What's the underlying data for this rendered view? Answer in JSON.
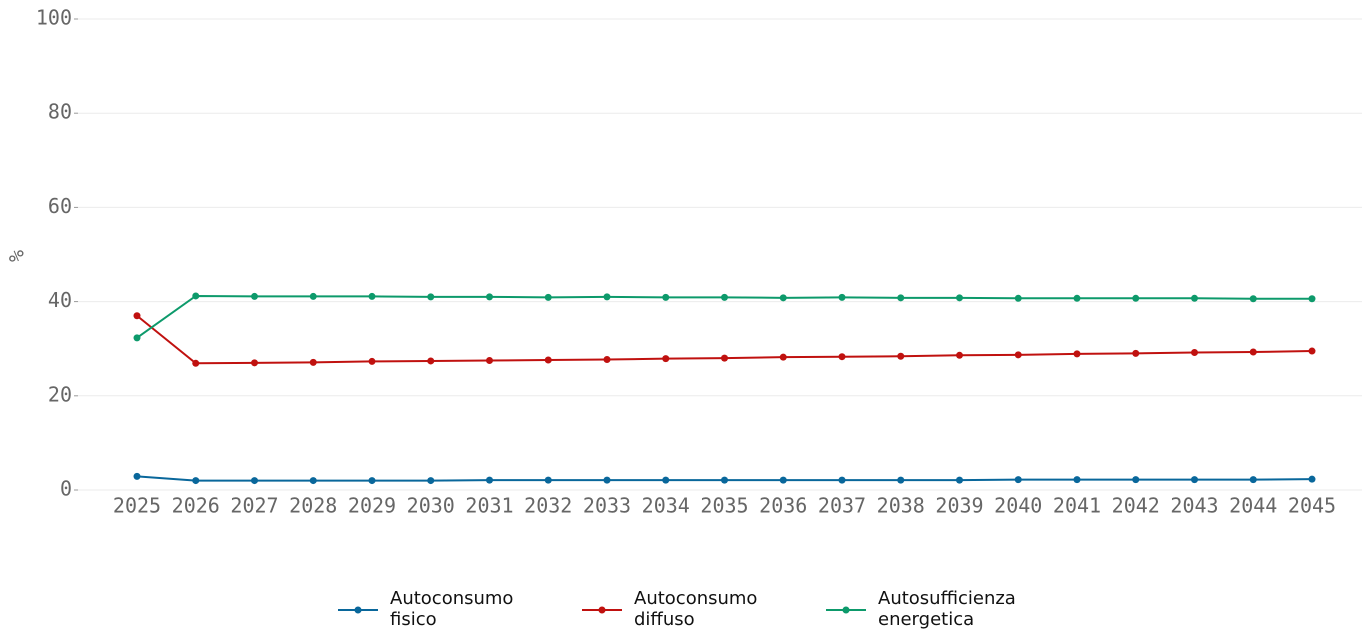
{
  "chart_data": {
    "type": "line",
    "y_label": "%",
    "categories": [
      "2025",
      "2026",
      "2027",
      "2028",
      "2029",
      "2030",
      "2031",
      "2032",
      "2033",
      "2034",
      "2035",
      "2036",
      "2037",
      "2038",
      "2039",
      "2040",
      "2041",
      "2042",
      "2043",
      "2044",
      "2045"
    ],
    "series": [
      {
        "name": "Autoconsumo fisico",
        "color": "#09679b",
        "values": [
          2.9,
          2.0,
          2.0,
          2.0,
          2.0,
          2.0,
          2.1,
          2.1,
          2.1,
          2.1,
          2.1,
          2.1,
          2.1,
          2.1,
          2.1,
          2.2,
          2.2,
          2.2,
          2.2,
          2.2,
          2.3
        ]
      },
      {
        "name": "Autoconsumo diffuso",
        "color": "#c0110f",
        "values": [
          37.0,
          26.9,
          27.0,
          27.1,
          27.3,
          27.4,
          27.5,
          27.6,
          27.7,
          27.9,
          28.0,
          28.2,
          28.3,
          28.4,
          28.6,
          28.7,
          28.9,
          29.0,
          29.2,
          29.3,
          29.5
        ]
      },
      {
        "name": "Autosufficienza energetica",
        "color": "#0d9a6b",
        "values": [
          32.3,
          41.2,
          41.1,
          41.1,
          41.1,
          41.0,
          41.0,
          40.9,
          41.0,
          40.9,
          40.9,
          40.8,
          40.9,
          40.8,
          40.8,
          40.7,
          40.7,
          40.7,
          40.7,
          40.6,
          40.6
        ]
      }
    ],
    "ylim": [
      0,
      100
    ],
    "yticks": [
      0,
      20,
      40,
      60,
      80,
      100
    ],
    "grid": true,
    "legend": "bottom"
  }
}
